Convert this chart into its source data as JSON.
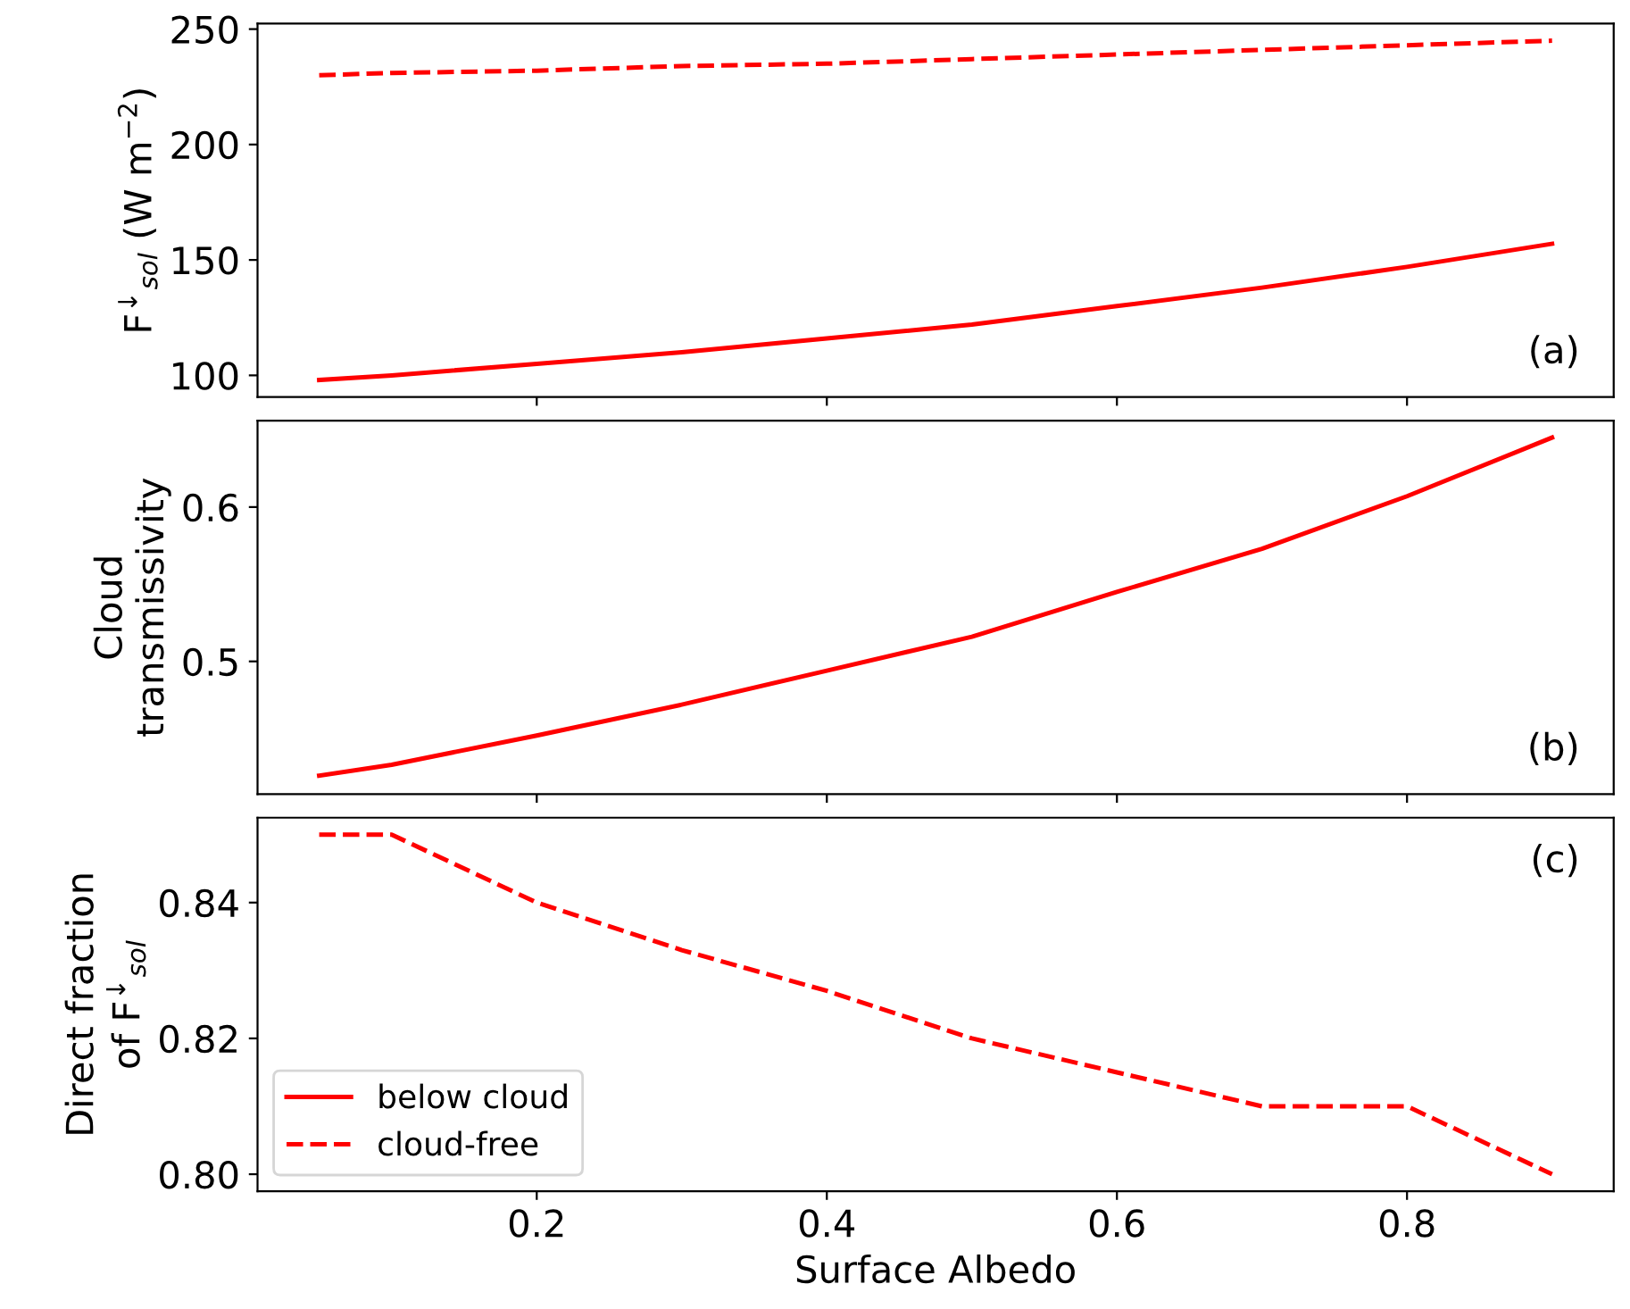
{
  "chart_data": [
    {
      "type": "line",
      "ylabel": "F$^{↓}$$_{sol}$ (W m$^{−2}$)",
      "x": [
        0.05,
        0.1,
        0.2,
        0.3,
        0.4,
        0.5,
        0.6,
        0.7,
        0.8,
        0.9
      ],
      "xlim": [
        0.0075,
        0.9425
      ],
      "xticks": [
        0.2,
        0.4,
        0.6,
        0.8
      ],
      "ylim": [
        90.6,
        252.4
      ],
      "yticks": [
        100,
        150,
        200,
        250
      ],
      "tick_labels": "y",
      "annotations": [
        "(a)"
      ],
      "series": [
        {
          "color": "#ff0000",
          "line_style": "solid",
          "values": [
            98,
            100,
            105,
            110,
            116,
            122,
            130,
            138,
            147,
            157
          ]
        },
        {
          "color": "#ff0000",
          "line_style": "dashed",
          "values": [
            230,
            231,
            232,
            234,
            235,
            237,
            239,
            241,
            243,
            245
          ]
        }
      ]
    },
    {
      "type": "line",
      "ylabel": "Cloud\ntransmissivity",
      "x": [
        0.05,
        0.1,
        0.2,
        0.3,
        0.4,
        0.5,
        0.6,
        0.7,
        0.8,
        0.9
      ],
      "xlim": [
        0.0075,
        0.9425
      ],
      "xticks": [
        0.2,
        0.4,
        0.6,
        0.8
      ],
      "ylim": [
        0.414,
        0.656
      ],
      "yticks": [
        0.5,
        0.6
      ],
      "tick_labels": "y",
      "annotations": [
        "(b)"
      ],
      "series": [
        {
          "color": "#ff0000",
          "line_style": "solid",
          "values": [
            0.426,
            0.433,
            0.452,
            0.472,
            0.494,
            0.516,
            0.545,
            0.573,
            0.607,
            0.645
          ]
        }
      ]
    },
    {
      "type": "line",
      "xlabel": "Surface Albedo",
      "ylabel": "Direct fraction\nof F$^{↓}$$_{sol}$",
      "x": [
        0.05,
        0.1,
        0.2,
        0.3,
        0.4,
        0.5,
        0.6,
        0.7,
        0.8,
        0.9
      ],
      "xlim": [
        0.0075,
        0.9425
      ],
      "xticks": [
        0.2,
        0.4,
        0.6,
        0.8
      ],
      "ylim": [
        0.7975,
        0.8525
      ],
      "yticks": [
        {
          "value": 0.8,
          "label": "0.80"
        },
        {
          "value": 0.82,
          "label": "0.82"
        },
        {
          "value": 0.84,
          "label": "0.84"
        }
      ],
      "legend": "lower left",
      "annotations": [
        "(c)"
      ],
      "series": [
        {
          "name": "below cloud",
          "color": "#ff0000",
          "line_style": "solid",
          "values": [
            null,
            null,
            null,
            null,
            null,
            null,
            null,
            null,
            null,
            null
          ]
        },
        {
          "name": "cloud-free",
          "color": "#ff0000",
          "line_style": "dashed",
          "values": [
            0.85,
            0.85,
            0.84,
            0.833,
            0.827,
            0.82,
            0.815,
            0.81,
            0.81,
            0.8
          ]
        }
      ]
    }
  ]
}
